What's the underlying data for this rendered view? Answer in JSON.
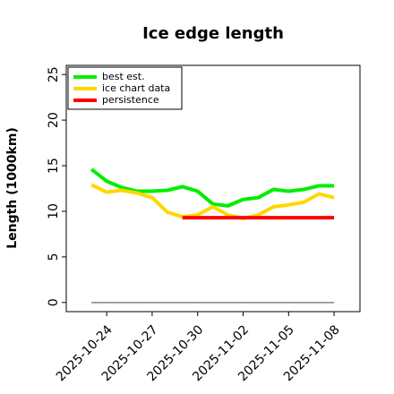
{
  "chart_data": {
    "type": "line",
    "title": "Ice edge length",
    "ylabel": "Length (1000km)",
    "x": [
      "2025-10-23",
      "2025-10-24",
      "2025-10-25",
      "2025-10-26",
      "2025-10-27",
      "2025-10-28",
      "2025-10-29",
      "2025-10-30",
      "2025-10-31",
      "2025-11-01",
      "2025-11-02",
      "2025-11-03",
      "2025-11-04",
      "2025-11-05",
      "2025-11-06",
      "2025-11-07",
      "2025-11-08"
    ],
    "series": [
      {
        "name": "best est.",
        "color": "#00ee00",
        "values": [
          14.6,
          13.3,
          12.6,
          12.2,
          12.2,
          12.3,
          12.7,
          12.2,
          10.8,
          10.6,
          11.3,
          11.5,
          12.4,
          12.2,
          12.4,
          12.8,
          12.8
        ]
      },
      {
        "name": "ice chart data",
        "color": "#ffd700",
        "values": [
          12.9,
          12.1,
          12.3,
          12.0,
          11.5,
          9.9,
          9.4,
          9.6,
          10.5,
          9.6,
          9.2,
          9.6,
          10.5,
          10.7,
          11.0,
          11.9,
          11.5
        ]
      },
      {
        "name": "persistence",
        "color": "#ff0000",
        "values": [
          null,
          null,
          null,
          null,
          null,
          null,
          9.3,
          9.3,
          9.3,
          9.3,
          9.3,
          9.3,
          9.3,
          9.3,
          9.3,
          9.3,
          9.3
        ]
      },
      {
        "color": "#808080",
        "values": [
          0,
          0,
          0,
          0,
          0,
          0,
          0,
          0,
          0,
          0,
          0,
          0,
          0,
          0,
          0,
          0,
          0
        ]
      }
    ],
    "xlim": [
      "2025-10-21T08:00",
      "2025-11-09T17:00"
    ],
    "xticks": [
      "2025-10-24",
      "2025-10-27",
      "2025-10-30",
      "2025-11-02",
      "2025-11-05",
      "2025-11-08"
    ],
    "ylim": [
      -1,
      26
    ],
    "yticks": [
      0,
      5,
      10,
      15,
      20,
      25
    ],
    "grid": false,
    "legend": "upper left"
  }
}
